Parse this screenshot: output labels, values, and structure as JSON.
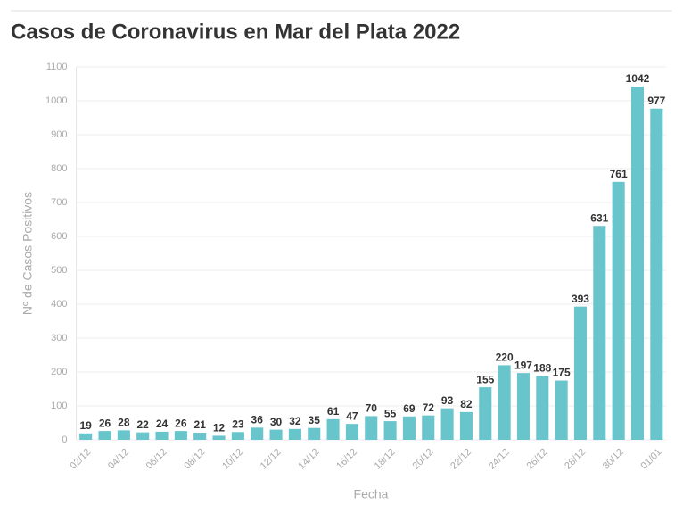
{
  "chart_data": {
    "type": "bar",
    "title": "Casos de Coronavirus en Mar del Plata 2022",
    "x_label": "Fecha",
    "y_label": "Nº de Casos Positivos",
    "categories": [
      "02/12",
      null,
      "04/12",
      null,
      "06/12",
      null,
      "08/12",
      null,
      "10/12",
      null,
      "12/12",
      null,
      "14/12",
      null,
      "16/12",
      null,
      "18/12",
      null,
      "20/12",
      null,
      "22/12",
      null,
      "24/12",
      null,
      "26/12",
      null,
      "28/12",
      null,
      "30/12",
      null,
      "01/01"
    ],
    "values": [
      19,
      26,
      28,
      22,
      24,
      26,
      21,
      12,
      23,
      36,
      30,
      32,
      35,
      61,
      47,
      70,
      55,
      69,
      72,
      93,
      82,
      155,
      220,
      197,
      188,
      175,
      393,
      631,
      761,
      1042,
      977
    ],
    "color": "#68c5cc",
    "ylim": [
      0,
      1100
    ],
    "yticks": [
      0,
      100,
      200,
      300,
      400,
      500,
      600,
      700,
      800,
      900,
      1000,
      1100
    ],
    "grid": true
  }
}
